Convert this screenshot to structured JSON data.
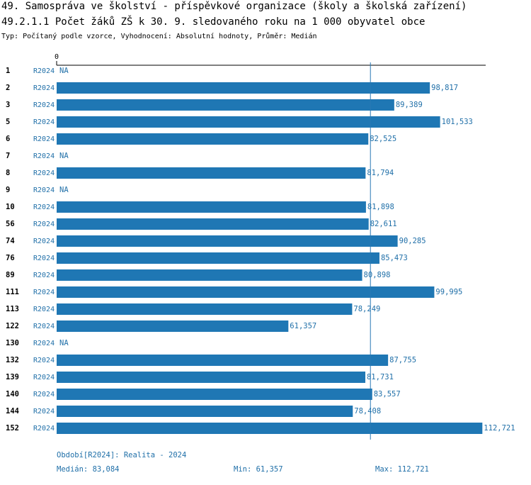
{
  "chart_data": {
    "type": "bar",
    "orientation": "horizontal",
    "title": "49. Samospráva ve školství - příspěvkové organizace (školy a školská zařízení)",
    "subtitle": "49.2.1.1 Počet žáků ZŠ k 30. 9. sledovaného roku  na 1 000 obyvatel obce",
    "note": "Typ: Počítaný podle vzorce, Vyhodnocení: Absolutní hodnoty, Průměr: Medián",
    "categories": [
      "1",
      "2",
      "3",
      "5",
      "6",
      "7",
      "8",
      "9",
      "10",
      "56",
      "74",
      "76",
      "89",
      "111",
      "113",
      "122",
      "130",
      "132",
      "139",
      "140",
      "144",
      "152"
    ],
    "series": [
      {
        "name": "R2024",
        "color": "#1f77b4",
        "values": [
          null,
          98.817,
          89.389,
          101.533,
          82.525,
          null,
          81.794,
          null,
          81.898,
          82.611,
          90.285,
          85.473,
          80.898,
          99.995,
          78.249,
          61.357,
          null,
          87.755,
          81.731,
          83.557,
          78.408,
          112.721
        ],
        "value_labels": [
          "NA",
          "98,817",
          "89,389",
          "101,533",
          "82,525",
          "NA",
          "81,794",
          "NA",
          "81,898",
          "82,611",
          "90,285",
          "85,473",
          "80,898",
          "99,995",
          "78,249",
          "61,357",
          "NA",
          "87,755",
          "81,731",
          "83,557",
          "78,408",
          "112,721"
        ]
      }
    ],
    "xlim": [
      0,
      113.6
    ],
    "xticks": [
      0
    ],
    "median": 83.084,
    "footer": {
      "period": "Období[R2024]: Realita - 2024",
      "median": "Medián: 83,084",
      "min": "Min: 61,357",
      "max": "Max: 112,721"
    }
  }
}
